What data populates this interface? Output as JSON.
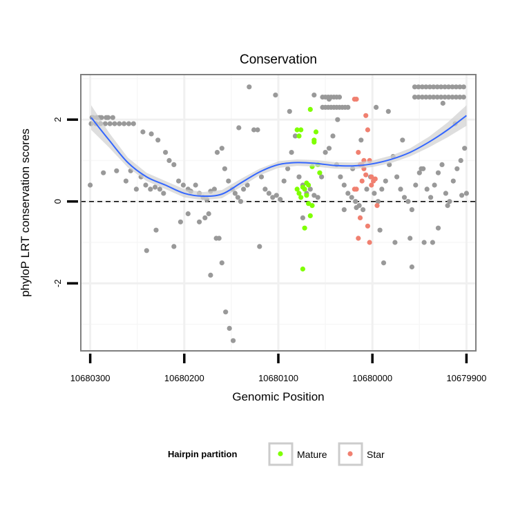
{
  "chart_data": {
    "type": "scatter",
    "title": "Conservation",
    "xlabel": "Genomic Position",
    "ylabel": "phyloP LRT conservation scores",
    "x_reversed": true,
    "xlim": [
      10680310,
      10679890
    ],
    "ylim": [
      -3.65,
      3.1
    ],
    "x_ticks": [
      10680300,
      10680200,
      10680100,
      10680000,
      10679900
    ],
    "x_tick_labels": [
      "10680300",
      "10680200",
      "10680100",
      "10680000",
      "10679900"
    ],
    "y_ticks": [
      2,
      0,
      -2
    ],
    "y_tick_labels": [
      "2",
      "0",
      "-2"
    ],
    "grid": true,
    "reference_line": {
      "y": 0,
      "style": "dashed"
    },
    "colors": {
      "Background": "#999999",
      "Mature": "#7fff00",
      "Star": "#f08070",
      "smooth": "#3366ff",
      "band": "#d0d0d0",
      "panel_border": "#7f7f7f"
    },
    "legend": {
      "title": "Hairpin partition",
      "position": "bottom",
      "entries": [
        "Mature",
        "Star"
      ]
    },
    "smooth_curve": {
      "x": [
        10680299,
        10680280,
        10680260,
        10680240,
        10680220,
        10680200,
        10680180,
        10680160,
        10680140,
        10680120,
        10680100,
        10680080,
        10680060,
        10680040,
        10680020,
        10680000,
        10679980,
        10679960,
        10679940,
        10679920,
        10679900
      ],
      "y": [
        2.05,
        1.5,
        0.95,
        0.6,
        0.4,
        0.2,
        0.13,
        0.18,
        0.45,
        0.72,
        0.9,
        0.95,
        0.93,
        0.88,
        0.87,
        0.92,
        1.03,
        1.2,
        1.45,
        1.75,
        2.1
      ],
      "se": [
        0.3,
        0.18,
        0.12,
        0.1,
        0.1,
        0.1,
        0.1,
        0.1,
        0.1,
        0.08,
        0.08,
        0.08,
        0.08,
        0.08,
        0.08,
        0.08,
        0.09,
        0.1,
        0.13,
        0.18,
        0.25
      ]
    },
    "series": [
      {
        "name": "Background",
        "x": [
          10680299,
          10680294,
          10680289,
          10680284,
          10680279,
          10680274,
          10680269,
          10680264,
          10680259,
          10680254,
          10680298,
          10680293,
          10680288,
          10680283,
          10680297,
          10680290,
          10680281,
          10680276,
          10680300,
          10680286,
          10680272,
          10680262,
          10680257,
          10680251,
          10680246,
          10680241,
          10680236,
          10680231,
          10680226,
          10680222,
          10680244,
          10680235,
          10680228,
          10680220,
          10680216,
          10680211,
          10680206,
          10680201,
          10680196,
          10680193,
          10680188,
          10680184,
          10680180,
          10680176,
          10680172,
          10680168,
          10680165,
          10680160,
          10680157,
          10680153,
          10680149,
          10680146,
          10680143,
          10680140,
          10680137,
          10680133,
          10680126,
          10680122,
          10680118,
          10680114,
          10680110,
          10680106,
          10680102,
          10680098,
          10680094,
          10680090,
          10680086,
          10680082,
          10680078,
          10680074,
          10680070,
          10680066,
          10680062,
          10680058,
          10680054,
          10680050,
          10680046,
          10680042,
          10680038,
          10680034,
          10680030,
          10680026,
          10680022,
          10680018,
          10680014,
          10680010,
          10680006,
          10680002,
          10679998,
          10679994,
          10679990,
          10679986,
          10679982,
          10679978,
          10679974,
          10679970,
          10679966,
          10679962,
          10679958,
          10679954,
          10679950,
          10679946,
          10679942,
          10679938,
          10679934,
          10679930,
          10679926,
          10679922,
          10679918,
          10679914,
          10679910,
          10679906,
          10679902,
          10680053,
          10680050,
          10680047,
          10680044,
          10680041,
          10680038,
          10680035,
          10680053,
          10680050,
          10680047,
          10680044,
          10680041,
          10680038,
          10680035,
          10680032,
          10680029,
          10680026,
          10679955,
          10679951,
          10679947,
          10679943,
          10679939,
          10679935,
          10679931,
          10679927,
          10679923,
          10679919,
          10679915,
          10679911,
          10679907,
          10679903,
          10679955,
          10679951,
          10679947,
          10679943,
          10679939,
          10679935,
          10679931,
          10679927,
          10679923,
          10679919,
          10679915,
          10679911,
          10679907,
          10679903,
          10680160,
          10680156,
          10680152,
          10680148,
          10680178,
          10680184,
          10680196,
          10680172,
          10680163,
          10680120,
          10680074,
          10680030,
          10680017,
          10679992,
          10679976,
          10679960,
          10679945,
          10679930,
          10679920,
          10679905,
          10679900,
          10680211,
          10680230,
          10680240,
          10680204,
          10680174,
          10680166,
          10680142,
          10680131,
          10680103,
          10680088,
          10680062,
          10680046,
          10680037,
          10680021,
          10680012,
          10679996,
          10679988,
          10679983,
          10679968,
          10679958,
          10679948,
          10679936,
          10679925,
          10679912
        ],
        "y": [
          1.9,
          1.9,
          1.9,
          1.9,
          1.9,
          1.9,
          1.9,
          1.9,
          1.9,
          1.9,
          2.05,
          2.05,
          2.05,
          2.05,
          2.05,
          2.05,
          2.05,
          2.05,
          0.4,
          0.7,
          0.75,
          0.5,
          0.75,
          0.3,
          0.6,
          0.4,
          0.3,
          0.35,
          0.3,
          0.2,
          1.7,
          1.65,
          1.5,
          1.2,
          1.0,
          0.9,
          0.5,
          0.4,
          0.3,
          0.25,
          0.4,
          0.2,
          0.1,
          0.05,
          0.25,
          0.3,
          1.2,
          1.3,
          0.8,
          0.5,
          0.3,
          0.2,
          0.1,
          0.0,
          0.3,
          0.4,
          1.75,
          1.75,
          0.6,
          0.3,
          0.2,
          0.1,
          0.15,
          0.05,
          0.5,
          0.8,
          1.2,
          1.6,
          0.6,
          0.4,
          0.2,
          0.3,
          0.15,
          0.1,
          0.6,
          1.2,
          1.3,
          1.6,
          0.9,
          0.6,
          0.4,
          0.2,
          0.1,
          0.0,
          -0.1,
          -0.2,
          0.3,
          0.6,
          0.2,
          0.0,
          0.3,
          0.5,
          0.9,
          1.1,
          0.6,
          0.3,
          0.1,
          0.0,
          -0.2,
          0.4,
          0.7,
          0.8,
          0.3,
          0.1,
          0.4,
          0.7,
          0.9,
          0.2,
          0.0,
          0.5,
          0.8,
          1.0,
          1.3,
          2.55,
          2.55,
          2.55,
          2.55,
          2.55,
          2.55,
          2.55,
          2.3,
          2.3,
          2.3,
          2.3,
          2.3,
          2.3,
          2.3,
          2.3,
          2.3,
          2.3,
          2.8,
          2.8,
          2.8,
          2.8,
          2.8,
          2.8,
          2.8,
          2.8,
          2.8,
          2.8,
          2.8,
          2.8,
          2.8,
          2.8,
          2.55,
          2.55,
          2.55,
          2.55,
          2.55,
          2.55,
          2.55,
          2.55,
          2.55,
          2.55,
          2.55,
          2.55,
          2.55,
          2.55,
          -1.5,
          -2.7,
          -3.1,
          -3.4,
          -0.4,
          -0.5,
          -0.3,
          -1.8,
          -0.9,
          -1.1,
          -0.4,
          -0.2,
          -0.15,
          -0.7,
          -1.0,
          -0.9,
          -1.0,
          -0.65,
          -0.1,
          0.15,
          0.2,
          -1.1,
          -0.7,
          -1.2,
          -0.5,
          -0.3,
          -0.9,
          1.8,
          2.8,
          2.6,
          2.2,
          2.6,
          2.5,
          2.0,
          0.8,
          1.5,
          2.3,
          -1.5,
          2.2,
          1.5,
          -1.6,
          0.8,
          -1.0,
          2.4,
          1.9
        ]
      },
      {
        "name": "Mature",
        "x": [
          10680080,
          10680078,
          10680076,
          10680074,
          10680072,
          10680070,
          10680068,
          10680066,
          10680064,
          10680062,
          10680060,
          10680058,
          10680056,
          10680080,
          10680078,
          10680076,
          10680074,
          10680072,
          10680070,
          10680068,
          10680066,
          10680064,
          10680062
        ],
        "y": [
          1.75,
          1.6,
          0.1,
          0.35,
          -0.65,
          0.45,
          0.4,
          2.25,
          0.85,
          1.45,
          1.7,
          0.9,
          0.7,
          0.3,
          0.2,
          1.75,
          -1.65,
          0.3,
          0.15,
          -0.05,
          -0.35,
          -0.1,
          1.5
        ]
      },
      {
        "name": "Star",
        "x": [
          10680019,
          10680017,
          10680015,
          10680013,
          10680011,
          10680009,
          10680007,
          10680005,
          10680003,
          10680001,
          10679999,
          10679997,
          10679995,
          10680019,
          10680017,
          10680015,
          10680013,
          10680011,
          10680009,
          10680007,
          10680005,
          10680003,
          10680001
        ],
        "y": [
          2.5,
          2.5,
          1.2,
          0.9,
          0.5,
          1.0,
          2.1,
          1.75,
          1.0,
          0.6,
          0.5,
          0.55,
          -0.1,
          0.3,
          0.3,
          -0.9,
          -0.4,
          0.9,
          0.8,
          0.65,
          -0.6,
          -1.0,
          0.4
        ]
      }
    ]
  }
}
